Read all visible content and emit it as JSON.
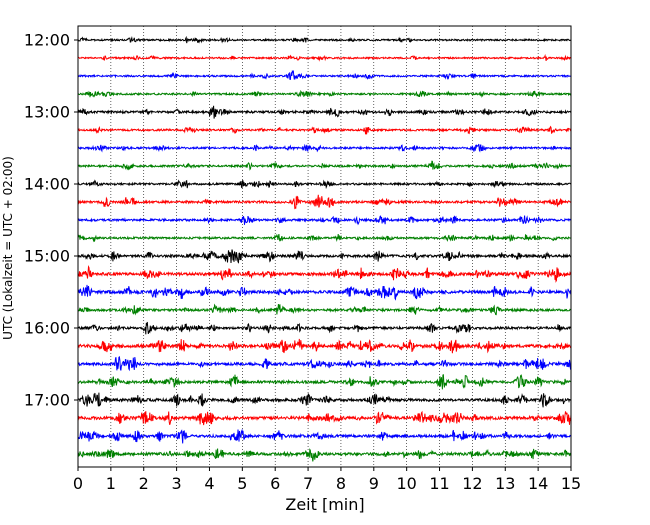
{
  "chart_data": {
    "type": "line",
    "subtype": "helicorder-seismogram",
    "title": "",
    "xlabel": "Zeit  [min]",
    "ylabel": "UTC (Lokalzeit = UTC + 02:00)",
    "xlim": [
      0,
      15
    ],
    "x_ticks": [
      0,
      1,
      2,
      3,
      4,
      5,
      6,
      7,
      8,
      9,
      10,
      11,
      12,
      13,
      14,
      15
    ],
    "x_tick_labels": [
      "0",
      "1",
      "2",
      "3",
      "4",
      "5",
      "6",
      "7",
      "8",
      "9",
      "10",
      "11",
      "12",
      "13",
      "14",
      "15"
    ],
    "y_tick_labels": [
      "12:00",
      "13:00",
      "14:00",
      "15:00",
      "16:00",
      "17:00"
    ],
    "grid": "vertical dotted lines at each minute",
    "trace_minutes_each": 15,
    "trace_color_cycle": [
      "#000000",
      "#ff0000",
      "#0000ff",
      "#008000"
    ],
    "series": [
      {
        "start": "12:00",
        "color": "#000000",
        "activity": 0.2
      },
      {
        "start": "12:15",
        "color": "#ff0000",
        "activity": 0.2
      },
      {
        "start": "12:30",
        "color": "#0000ff",
        "activity": 0.25
      },
      {
        "start": "12:45",
        "color": "#008000",
        "activity": 0.3
      },
      {
        "start": "13:00",
        "color": "#000000",
        "activity": 0.5
      },
      {
        "start": "13:15",
        "color": "#ff0000",
        "activity": 0.35
      },
      {
        "start": "13:30",
        "color": "#0000ff",
        "activity": 0.35
      },
      {
        "start": "13:45",
        "color": "#008000",
        "activity": 0.35
      },
      {
        "start": "14:00",
        "color": "#000000",
        "activity": 0.35
      },
      {
        "start": "14:15",
        "color": "#ff0000",
        "activity": 0.55
      },
      {
        "start": "14:30",
        "color": "#0000ff",
        "activity": 0.45
      },
      {
        "start": "14:45",
        "color": "#008000",
        "activity": 0.4
      },
      {
        "start": "15:00",
        "color": "#000000",
        "activity": 0.65
      },
      {
        "start": "15:15",
        "color": "#ff0000",
        "activity": 0.85
      },
      {
        "start": "15:30",
        "color": "#0000ff",
        "activity": 0.85
      },
      {
        "start": "15:45",
        "color": "#008000",
        "activity": 0.55
      },
      {
        "start": "16:00",
        "color": "#000000",
        "activity": 0.6
      },
      {
        "start": "16:15",
        "color": "#ff0000",
        "activity": 1.0
      },
      {
        "start": "16:30",
        "color": "#0000ff",
        "activity": 0.8
      },
      {
        "start": "16:45",
        "color": "#008000",
        "activity": 0.75
      },
      {
        "start": "17:00",
        "color": "#000000",
        "activity": 0.75
      },
      {
        "start": "17:15",
        "color": "#ff0000",
        "activity": 0.95
      },
      {
        "start": "17:30",
        "color": "#0000ff",
        "activity": 0.75
      },
      {
        "start": "17:45",
        "color": "#008000",
        "activity": 0.8
      }
    ]
  }
}
